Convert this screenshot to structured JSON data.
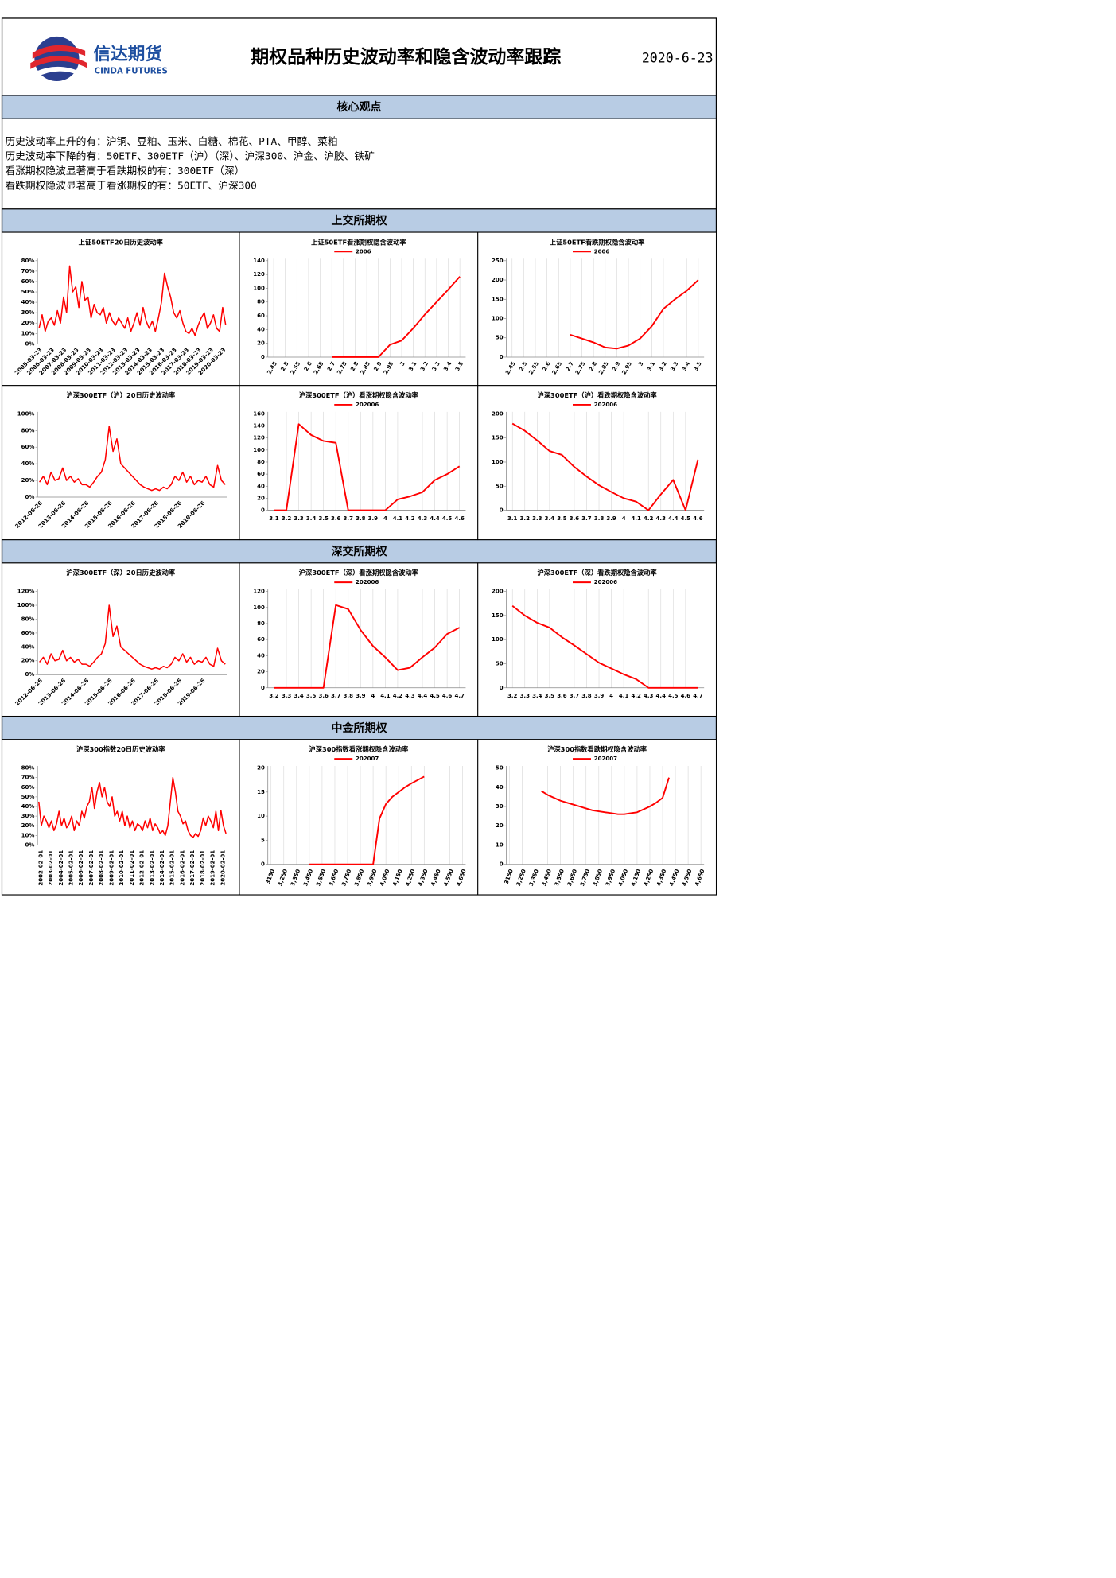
{
  "header": {
    "logo_cn": "信达期货",
    "logo_en": "CINDA FUTURES",
    "title": "期权品种历史波动率和隐含波动率跟踪",
    "date": "2020-6-23"
  },
  "core_view": {
    "title": "核心观点",
    "lines": [
      "历史波动率上升的有：沪铜、豆粕、玉米、白糖、棉花、PTA、甲醇、菜粕",
      "历史波动率下降的有：50ETF、300ETF（沪）（深）、沪深300、沪金、沪胶、铁矿",
      "看涨期权隐波显著高于看跌期权的有：300ETF（深）",
      "看跌期权隐波显著高于看涨期权的有：50ETF、沪深300"
    ]
  },
  "sections": [
    "上交所期权",
    "深交所期权",
    "中金所期权"
  ],
  "chart_data": [
    {
      "type": "line",
      "title": "上证50ETF20日历史波动率",
      "categories": [
        "2005-03-23",
        null,
        null,
        null,
        "2006-03-23",
        null,
        null,
        null,
        "2007-03-23",
        null,
        null,
        null,
        "2008-03-23",
        null,
        null,
        null,
        "2009-03-23",
        null,
        null,
        null,
        "2010-03-23",
        null,
        null,
        null,
        "2011-03-23",
        null,
        null,
        null,
        "2012-03-23",
        null,
        null,
        null,
        "2013-03-23",
        null,
        null,
        null,
        "2014-03-23",
        null,
        null,
        null,
        "2015-03-23",
        null,
        null,
        null,
        "2016-03-23",
        null,
        null,
        null,
        "2017-03-23",
        null,
        null,
        null,
        "2018-03-23",
        null,
        null,
        null,
        "2019-03-23",
        null,
        null,
        null,
        "2020-03-23",
        null
      ],
      "series": [
        {
          "color": "#ff0000",
          "values": [
            15,
            28,
            12,
            22,
            25,
            18,
            32,
            20,
            45,
            30,
            75,
            50,
            55,
            35,
            60,
            42,
            45,
            25,
            38,
            30,
            28,
            35,
            20,
            30,
            22,
            18,
            25,
            20,
            15,
            25,
            12,
            20,
            30,
            18,
            35,
            22,
            15,
            22,
            12,
            25,
            40,
            68,
            55,
            45,
            30,
            25,
            32,
            20,
            12,
            10,
            15,
            8,
            18,
            25,
            30,
            15,
            20,
            28,
            15,
            12,
            35,
            18
          ]
        }
      ],
      "ylim": [
        0,
        80
      ],
      "yticks": [
        {
          "value": 0,
          "label": "0%"
        },
        {
          "value": 10,
          "label": "10%"
        },
        {
          "value": 20,
          "label": "20%"
        },
        {
          "value": 30,
          "label": "30%"
        },
        {
          "value": 40,
          "label": "40%"
        },
        {
          "value": 50,
          "label": "50%"
        },
        {
          "value": 60,
          "label": "60%"
        },
        {
          "value": 70,
          "label": "70%"
        },
        {
          "value": 80,
          "label": "80%"
        }
      ],
      "grid": false
    },
    {
      "type": "line",
      "title": "上证50ETF看涨期权隐含波动率",
      "categories": [
        "2.45",
        "2.5",
        "2.55",
        "2.6",
        "2.65",
        "2.7",
        "2.75",
        "2.8",
        "2.85",
        "2.9",
        "2.95",
        "3",
        "3.1",
        "3.2",
        "3.3",
        "3.4",
        "3.5"
      ],
      "series": [
        {
          "name": "2006",
          "color": "#ff0000",
          "values": [
            null,
            null,
            null,
            null,
            null,
            0,
            0,
            0,
            0,
            0,
            18,
            24,
            42,
            62,
            80,
            98,
            117
          ]
        }
      ],
      "ylim": [
        0,
        140
      ],
      "yticks": [
        0,
        20,
        40,
        60,
        80,
        100,
        120,
        140
      ],
      "grid": true,
      "legend": "top"
    },
    {
      "type": "line",
      "title": "上证50ETF看跌期权隐含波动率",
      "categories": [
        "2.45",
        "2.5",
        "2.55",
        "2.6",
        "2.65",
        "2.7",
        "2.75",
        "2.8",
        "2.85",
        "2.9",
        "2.95",
        "3",
        "3.1",
        "3.2",
        "3.3",
        "3.4",
        "3.5"
      ],
      "series": [
        {
          "name": "2006",
          "color": "#ff0000",
          "values": [
            null,
            null,
            null,
            null,
            null,
            58,
            48,
            38,
            25,
            22,
            30,
            48,
            80,
            125,
            150,
            172,
            200
          ]
        }
      ],
      "ylim": [
        0,
        250
      ],
      "yticks": [
        0,
        50,
        100,
        150,
        200,
        250
      ],
      "grid": true,
      "legend": "top"
    },
    {
      "type": "line",
      "title": "沪深300ETF（沪）20日历史波动率",
      "categories": [
        "2012-06-26",
        null,
        null,
        null,
        null,
        null,
        "2013-06-26",
        null,
        null,
        null,
        null,
        null,
        "2014-06-26",
        null,
        null,
        null,
        null,
        null,
        "2015-06-26",
        null,
        null,
        null,
        null,
        null,
        "2016-06-26",
        null,
        null,
        null,
        null,
        null,
        "2017-06-26",
        null,
        null,
        null,
        null,
        null,
        "2018-06-26",
        null,
        null,
        null,
        null,
        null,
        "2019-06-26",
        null,
        null,
        null,
        null,
        null,
        null
      ],
      "series": [
        {
          "color": "#ff0000",
          "values": [
            18,
            25,
            15,
            30,
            20,
            22,
            35,
            20,
            25,
            18,
            22,
            15,
            15,
            12,
            18,
            25,
            30,
            45,
            85,
            55,
            70,
            40,
            35,
            30,
            25,
            20,
            15,
            12,
            10,
            8,
            10,
            8,
            12,
            10,
            15,
            25,
            20,
            30,
            18,
            25,
            15,
            20,
            18,
            25,
            15,
            12,
            38,
            20,
            15
          ]
        }
      ],
      "ylim": [
        0,
        100
      ],
      "yticks": [
        {
          "value": 0,
          "label": "0%"
        },
        {
          "value": 20,
          "label": "20%"
        },
        {
          "value": 40,
          "label": "40%"
        },
        {
          "value": 60,
          "label": "60%"
        },
        {
          "value": 80,
          "label": "80%"
        },
        {
          "value": 100,
          "label": "100%"
        }
      ],
      "grid": false
    },
    {
      "type": "line",
      "title": "沪深300ETF（沪）看涨期权隐含波动率",
      "categories": [
        "3.1",
        "3.2",
        "3.3",
        "3.4",
        "3.5",
        "3.6",
        "3.7",
        "3.8",
        "3.9",
        "4",
        "4.1",
        "4.2",
        "4.3",
        "4.4",
        "4.5",
        "4.6"
      ],
      "series": [
        {
          "name": "202006",
          "color": "#ff0000",
          "values": [
            0,
            0,
            143,
            125,
            115,
            112,
            0,
            0,
            0,
            0,
            18,
            23,
            30,
            50,
            60,
            73
          ]
        }
      ],
      "ylim": [
        0,
        160
      ],
      "yticks": [
        0,
        20,
        40,
        60,
        80,
        100,
        120,
        140,
        160
      ],
      "grid": true,
      "legend": "top"
    },
    {
      "type": "line",
      "title": "沪深300ETF（沪）看跌期权隐含波动率",
      "categories": [
        "3.1",
        "3.2",
        "3.3",
        "3.4",
        "3.5",
        "3.6",
        "3.7",
        "3.8",
        "3.9",
        "4",
        "4.1",
        "4.2",
        "4.3",
        "4.4",
        "4.5",
        "4.6"
      ],
      "series": [
        {
          "name": "202006",
          "color": "#ff0000",
          "values": [
            180,
            165,
            145,
            123,
            115,
            90,
            70,
            52,
            38,
            25,
            18,
            0,
            33,
            63,
            0,
            105
          ]
        }
      ],
      "ylim": [
        0,
        200
      ],
      "yticks": [
        0,
        50,
        100,
        150,
        200
      ],
      "grid": true,
      "legend": "top"
    },
    {
      "type": "line",
      "title": "沪深300ETF（深）20日历史波动率",
      "categories": [
        "2012-06-26",
        null,
        null,
        null,
        null,
        null,
        "2013-06-26",
        null,
        null,
        null,
        null,
        null,
        "2014-06-26",
        null,
        null,
        null,
        null,
        null,
        "2015-06-26",
        null,
        null,
        null,
        null,
        null,
        "2016-06-26",
        null,
        null,
        null,
        null,
        null,
        "2017-06-26",
        null,
        null,
        null,
        null,
        null,
        "2018-06-26",
        null,
        null,
        null,
        null,
        null,
        "2019-06-26",
        null,
        null,
        null,
        null,
        null,
        null
      ],
      "series": [
        {
          "color": "#ff0000",
          "values": [
            18,
            25,
            15,
            30,
            20,
            22,
            35,
            20,
            25,
            18,
            22,
            15,
            15,
            12,
            18,
            25,
            30,
            45,
            100,
            55,
            70,
            40,
            35,
            30,
            25,
            20,
            15,
            12,
            10,
            8,
            10,
            8,
            12,
            10,
            15,
            25,
            20,
            30,
            18,
            25,
            15,
            20,
            18,
            25,
            15,
            12,
            38,
            20,
            15
          ]
        }
      ],
      "ylim": [
        0,
        120
      ],
      "yticks": [
        {
          "value": 0,
          "label": "0%"
        },
        {
          "value": 20,
          "label": "20%"
        },
        {
          "value": 40,
          "label": "40%"
        },
        {
          "value": 60,
          "label": "60%"
        },
        {
          "value": 80,
          "label": "80%"
        },
        {
          "value": 100,
          "label": "100%"
        },
        {
          "value": 120,
          "label": "120%"
        }
      ],
      "grid": false
    },
    {
      "type": "line",
      "title": "沪深300ETF（深）看涨期权隐含波动率",
      "categories": [
        "3.2",
        "3.3",
        "3.4",
        "3.5",
        "3.6",
        "3.7",
        "3.8",
        "3.9",
        "4",
        "4.1",
        "4.2",
        "4.3",
        "4.4",
        "4.5",
        "4.6",
        "4.7"
      ],
      "series": [
        {
          "name": "202006",
          "color": "#ff0000",
          "values": [
            0,
            0,
            0,
            0,
            0,
            103,
            98,
            72,
            52,
            38,
            22,
            25,
            38,
            50,
            67,
            75
          ]
        }
      ],
      "ylim": [
        0,
        120
      ],
      "yticks": [
        0,
        20,
        40,
        60,
        80,
        100,
        120
      ],
      "grid": true,
      "legend": "top"
    },
    {
      "type": "line",
      "title": "沪深300ETF（深）看跌期权隐含波动率",
      "categories": [
        "3.2",
        "3.3",
        "3.4",
        "3.5",
        "3.6",
        "3.7",
        "3.8",
        "3.9",
        "4",
        "4.1",
        "4.2",
        "4.3",
        "4.4",
        "4.5",
        "4.6",
        "4.7"
      ],
      "series": [
        {
          "name": "202006",
          "color": "#ff0000",
          "values": [
            170,
            150,
            135,
            125,
            105,
            88,
            70,
            52,
            40,
            28,
            18,
            0,
            0,
            0,
            0,
            0
          ]
        }
      ],
      "ylim": [
        0,
        200
      ],
      "yticks": [
        0,
        50,
        100,
        150,
        200
      ],
      "grid": true,
      "legend": "top"
    },
    {
      "type": "line",
      "title": "沪深300指数20日历史波动率",
      "categories": [
        "2002-02-01",
        null,
        null,
        null,
        "2003-02-01",
        null,
        null,
        null,
        "2004-02-01",
        null,
        null,
        null,
        "2005-02-01",
        null,
        null,
        null,
        "2006-02-01",
        null,
        null,
        null,
        "2007-02-01",
        null,
        null,
        null,
        "2008-02-01",
        null,
        null,
        null,
        "2009-02-01",
        null,
        null,
        null,
        "2010-02-01",
        null,
        null,
        null,
        "2011-02-01",
        null,
        null,
        null,
        "2012-02-01",
        null,
        null,
        null,
        "2013-02-01",
        null,
        null,
        null,
        "2014-02-01",
        null,
        null,
        null,
        "2015-02-01",
        null,
        null,
        null,
        "2016-02-01",
        null,
        null,
        null,
        "2017-02-01",
        null,
        null,
        null,
        "2018-02-01",
        null,
        null,
        null,
        "2019-02-01",
        null,
        null,
        null,
        "2020-02-01",
        null,
        null
      ],
      "series": [
        {
          "color": "#ff0000",
          "values": [
            45,
            20,
            30,
            25,
            18,
            25,
            15,
            22,
            35,
            20,
            28,
            18,
            22,
            30,
            15,
            25,
            20,
            35,
            28,
            40,
            45,
            60,
            38,
            55,
            65,
            50,
            60,
            45,
            40,
            50,
            30,
            35,
            25,
            35,
            20,
            30,
            18,
            25,
            15,
            22,
            20,
            15,
            25,
            18,
            28,
            15,
            22,
            18,
            12,
            15,
            10,
            20,
            45,
            70,
            55,
            35,
            30,
            22,
            25,
            15,
            10,
            8,
            12,
            9,
            15,
            28,
            20,
            30,
            25,
            18,
            35,
            15,
            36,
            20,
            12
          ]
        }
      ],
      "ylim": [
        0,
        80
      ],
      "yticks": [
        {
          "value": 0,
          "label": "0%"
        },
        {
          "value": 10,
          "label": "10%"
        },
        {
          "value": 20,
          "label": "20%"
        },
        {
          "value": 30,
          "label": "30%"
        },
        {
          "value": 40,
          "label": "40%"
        },
        {
          "value": 50,
          "label": "50%"
        },
        {
          "value": 60,
          "label": "60%"
        },
        {
          "value": 70,
          "label": "70%"
        },
        {
          "value": 80,
          "label": "80%"
        }
      ],
      "grid": false
    },
    {
      "type": "line",
      "title": "沪深300指数看涨期权隐含波动率",
      "categories": [
        "3150",
        null,
        "3,250",
        null,
        "3,350",
        null,
        "3,450",
        null,
        "3,550",
        null,
        "3,650",
        null,
        "3,750",
        null,
        "3,850",
        null,
        "3,950",
        null,
        "4,050",
        null,
        "4,150",
        null,
        "4,250",
        null,
        "4,350",
        null,
        "4,450",
        null,
        "4,550",
        null,
        "4,650"
      ],
      "series": [
        {
          "name": "202007",
          "color": "#ff0000",
          "values": [
            null,
            null,
            null,
            null,
            null,
            null,
            0,
            0,
            0,
            0,
            0,
            0,
            0,
            0,
            0,
            0,
            0,
            9.5,
            12.5,
            14,
            15,
            16,
            16.8,
            17.5,
            18.2,
            null,
            null,
            null,
            null,
            null,
            null
          ]
        }
      ],
      "ylim": [
        0,
        20
      ],
      "yticks": [
        0,
        5,
        10,
        15,
        20
      ],
      "grid": true,
      "legend": "top"
    },
    {
      "type": "line",
      "title": "沪深300指数看跌期权隐含波动率",
      "categories": [
        "3150",
        null,
        "3,250",
        null,
        "3,350",
        null,
        "3,450",
        null,
        "3,550",
        null,
        "3,650",
        null,
        "3,750",
        null,
        "3,850",
        null,
        "3,950",
        null,
        "4,050",
        null,
        "4,150",
        null,
        "4,250",
        null,
        "4,350",
        null,
        "4,450",
        null,
        "4,550",
        null,
        "4,650"
      ],
      "series": [
        {
          "name": "202007",
          "color": "#ff0000",
          "values": [
            null,
            null,
            null,
            null,
            null,
            38,
            36,
            34.5,
            33,
            32,
            31,
            30,
            29,
            28,
            27.5,
            27,
            26.5,
            26,
            26,
            26.5,
            27,
            28.5,
            30,
            32,
            34.5,
            45,
            null,
            null,
            null,
            null,
            null
          ]
        }
      ],
      "ylim": [
        0,
        50
      ],
      "yticks": [
        0,
        10,
        20,
        30,
        40,
        50
      ],
      "grid": true,
      "legend": "top"
    }
  ]
}
